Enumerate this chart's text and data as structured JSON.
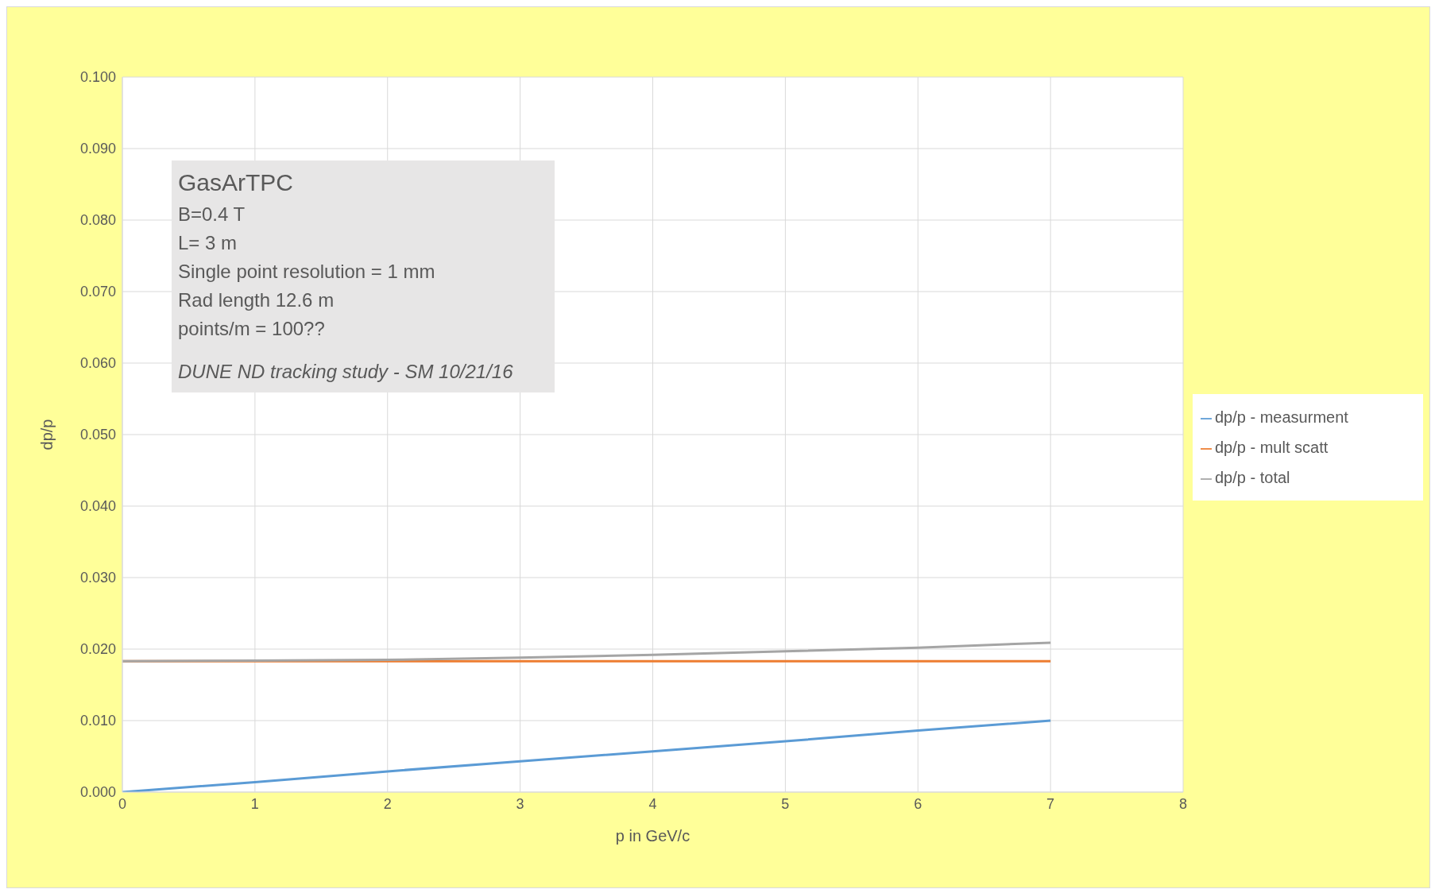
{
  "chart_data": {
    "type": "line",
    "xlabel": "p in GeV/c",
    "ylabel": "dp/p",
    "x": [
      0,
      1,
      2,
      3,
      4,
      5,
      6,
      7
    ],
    "series": [
      {
        "name": "dp/p - measurment",
        "color": "#5b9bd5",
        "values": [
          0,
          0.0014,
          0.0029,
          0.0043,
          0.0057,
          0.0071,
          0.0086,
          0.01
        ]
      },
      {
        "name": "dp/p - mult scatt",
        "color": "#ed7d31",
        "values": [
          0.0183,
          0.0183,
          0.0183,
          0.0183,
          0.0183,
          0.0183,
          0.0183,
          0.0183
        ]
      },
      {
        "name": "dp/p - total",
        "color": "#a5a5a5",
        "values": [
          0.0183,
          0.0184,
          0.0185,
          0.0188,
          0.0192,
          0.0197,
          0.0202,
          0.0209
        ]
      }
    ],
    "xlim": [
      0,
      8
    ],
    "xticks": [
      0,
      1,
      2,
      3,
      4,
      5,
      6,
      7,
      8
    ],
    "ylim": [
      0,
      0.1
    ],
    "yticks": [
      {
        "value": 0,
        "label": "0.000"
      },
      {
        "value": 0.01,
        "label": "0.010"
      },
      {
        "value": 0.02,
        "label": "0.020"
      },
      {
        "value": 0.03,
        "label": "0.030"
      },
      {
        "value": 0.04,
        "label": "0.040"
      },
      {
        "value": 0.05,
        "label": "0.050"
      },
      {
        "value": 0.06,
        "label": "0.060"
      },
      {
        "value": 0.07,
        "label": "0.070"
      },
      {
        "value": 0.08,
        "label": "0.080"
      },
      {
        "value": 0.09,
        "label": "0.090"
      },
      {
        "value": 0.1,
        "label": "0.100"
      }
    ],
    "grid": true,
    "legend": "right",
    "marker": "none",
    "line_style": "solid",
    "annotations": [
      "GasArTPC",
      "B=0.4 T",
      "L= 3 m",
      "Single point resolution = 1 mm",
      "Rad length 12.6 m",
      "points/m = 100??",
      "DUNE ND tracking study - SM 10/21/16"
    ]
  }
}
